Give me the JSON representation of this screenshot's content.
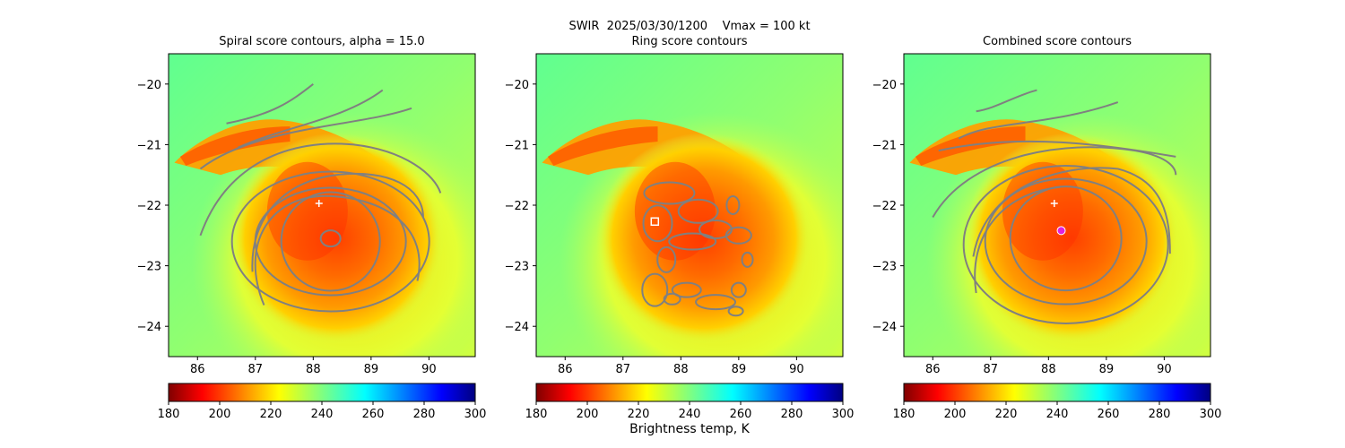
{
  "figure": {
    "suptitle": "SWIR  2025/03/30/1200    Vmax = 100 kt",
    "colorbar_label": "Brightness temp, K"
  },
  "chart_data": [
    {
      "type": "heatmap",
      "title": "Spiral score contours, alpha = 15.0",
      "xlim": [
        85.5,
        90.8
      ],
      "ylim": [
        -24.5,
        -19.5
      ],
      "xticks": [
        86,
        87,
        88,
        89,
        90
      ],
      "yticks": [
        -20,
        -21,
        -22,
        -23,
        -24
      ],
      "xlabel": "",
      "ylabel": "",
      "colorbar": {
        "ticks": [
          180,
          200,
          220,
          240,
          260,
          280,
          300
        ],
        "range": [
          180,
          300
        ],
        "colormap": "jet_r"
      },
      "markers": [
        {
          "symbol": "plus",
          "x": 88.1,
          "y": -21.97,
          "color": "#ffffff"
        }
      ],
      "contour_color": "#808080"
    },
    {
      "type": "heatmap",
      "title": "Ring score contours",
      "xlim": [
        85.5,
        90.8
      ],
      "ylim": [
        -24.5,
        -19.5
      ],
      "xticks": [
        86,
        87,
        88,
        89,
        90
      ],
      "yticks": [
        -20,
        -21,
        -22,
        -23,
        -24
      ],
      "xlabel": "",
      "ylabel": "",
      "colorbar": {
        "ticks": [
          180,
          200,
          220,
          240,
          260,
          280,
          300
        ],
        "range": [
          180,
          300
        ],
        "colormap": "jet_r"
      },
      "markers": [
        {
          "symbol": "square",
          "x": 87.55,
          "y": -22.27,
          "color": "#ffffff"
        }
      ],
      "contour_color": "#808080"
    },
    {
      "type": "heatmap",
      "title": "Combined score contours",
      "xlim": [
        85.5,
        90.8
      ],
      "ylim": [
        -24.5,
        -19.5
      ],
      "xticks": [
        86,
        87,
        88,
        89,
        90
      ],
      "yticks": [
        -20,
        -21,
        -22,
        -23,
        -24
      ],
      "xlabel": "",
      "ylabel": "",
      "colorbar": {
        "ticks": [
          180,
          200,
          220,
          240,
          260,
          280,
          300
        ],
        "range": [
          180,
          300
        ],
        "colormap": "jet_r"
      },
      "markers": [
        {
          "symbol": "plus",
          "x": 88.1,
          "y": -21.97,
          "color": "#ffffff"
        },
        {
          "symbol": "circle",
          "x": 88.22,
          "y": -22.42,
          "color": "#e020e0"
        }
      ],
      "contour_color": "#808080"
    }
  ]
}
